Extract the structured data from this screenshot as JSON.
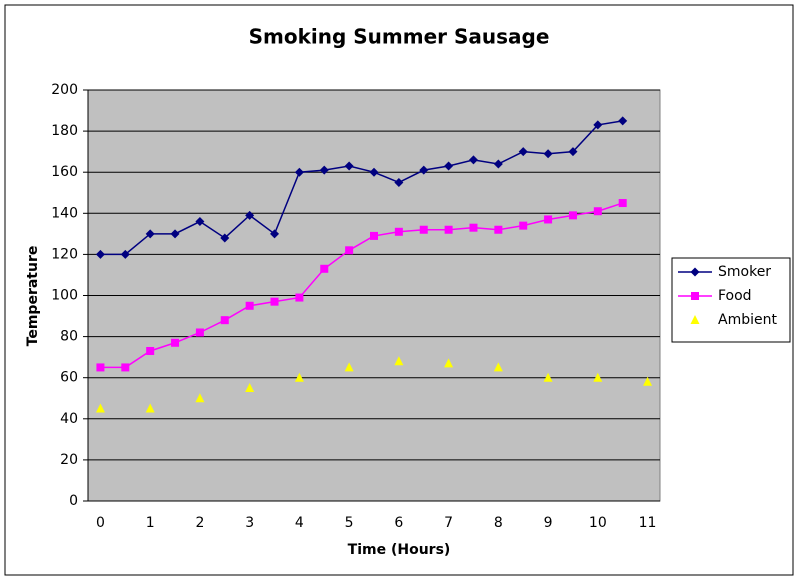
{
  "chart_data": {
    "type": "line",
    "title": "Smoking Summer Sausage",
    "x_label": "Time (Hours)",
    "y_label": "Temperature",
    "categories": [
      "0",
      null,
      "1",
      null,
      "2",
      null,
      "3",
      null,
      "4",
      null,
      "5",
      null,
      "6",
      null,
      "7",
      null,
      "8",
      null,
      "9",
      null,
      "10",
      null,
      "11"
    ],
    "series": [
      {
        "name": "Smoker",
        "color": "#000080",
        "marker": "diamond",
        "line": true,
        "values": [
          120,
          120,
          130,
          130,
          136,
          128,
          139,
          130,
          160,
          161,
          163,
          160,
          155,
          161,
          163,
          166,
          164,
          170,
          169,
          170,
          183,
          185,
          null
        ]
      },
      {
        "name": "Food",
        "color": "#ff00ff",
        "marker": "square",
        "line": true,
        "values": [
          65,
          65,
          73,
          77,
          82,
          88,
          95,
          97,
          99,
          113,
          122,
          129,
          131,
          132,
          132,
          133,
          132,
          134,
          137,
          139,
          141,
          145,
          null
        ]
      },
      {
        "name": "Ambient",
        "color": "#ffff00",
        "marker": "triangle",
        "line": false,
        "values": [
          45,
          null,
          45,
          null,
          50,
          null,
          55,
          null,
          60,
          null,
          65,
          null,
          68,
          null,
          67,
          null,
          65,
          null,
          60,
          null,
          60,
          null,
          58
        ]
      }
    ],
    "ylim": [
      0,
      200
    ],
    "yticks": [
      0,
      20,
      40,
      60,
      80,
      100,
      120,
      140,
      160,
      180,
      200
    ],
    "grid": true,
    "plot_background": "#c0c0c0",
    "legend": "right"
  }
}
